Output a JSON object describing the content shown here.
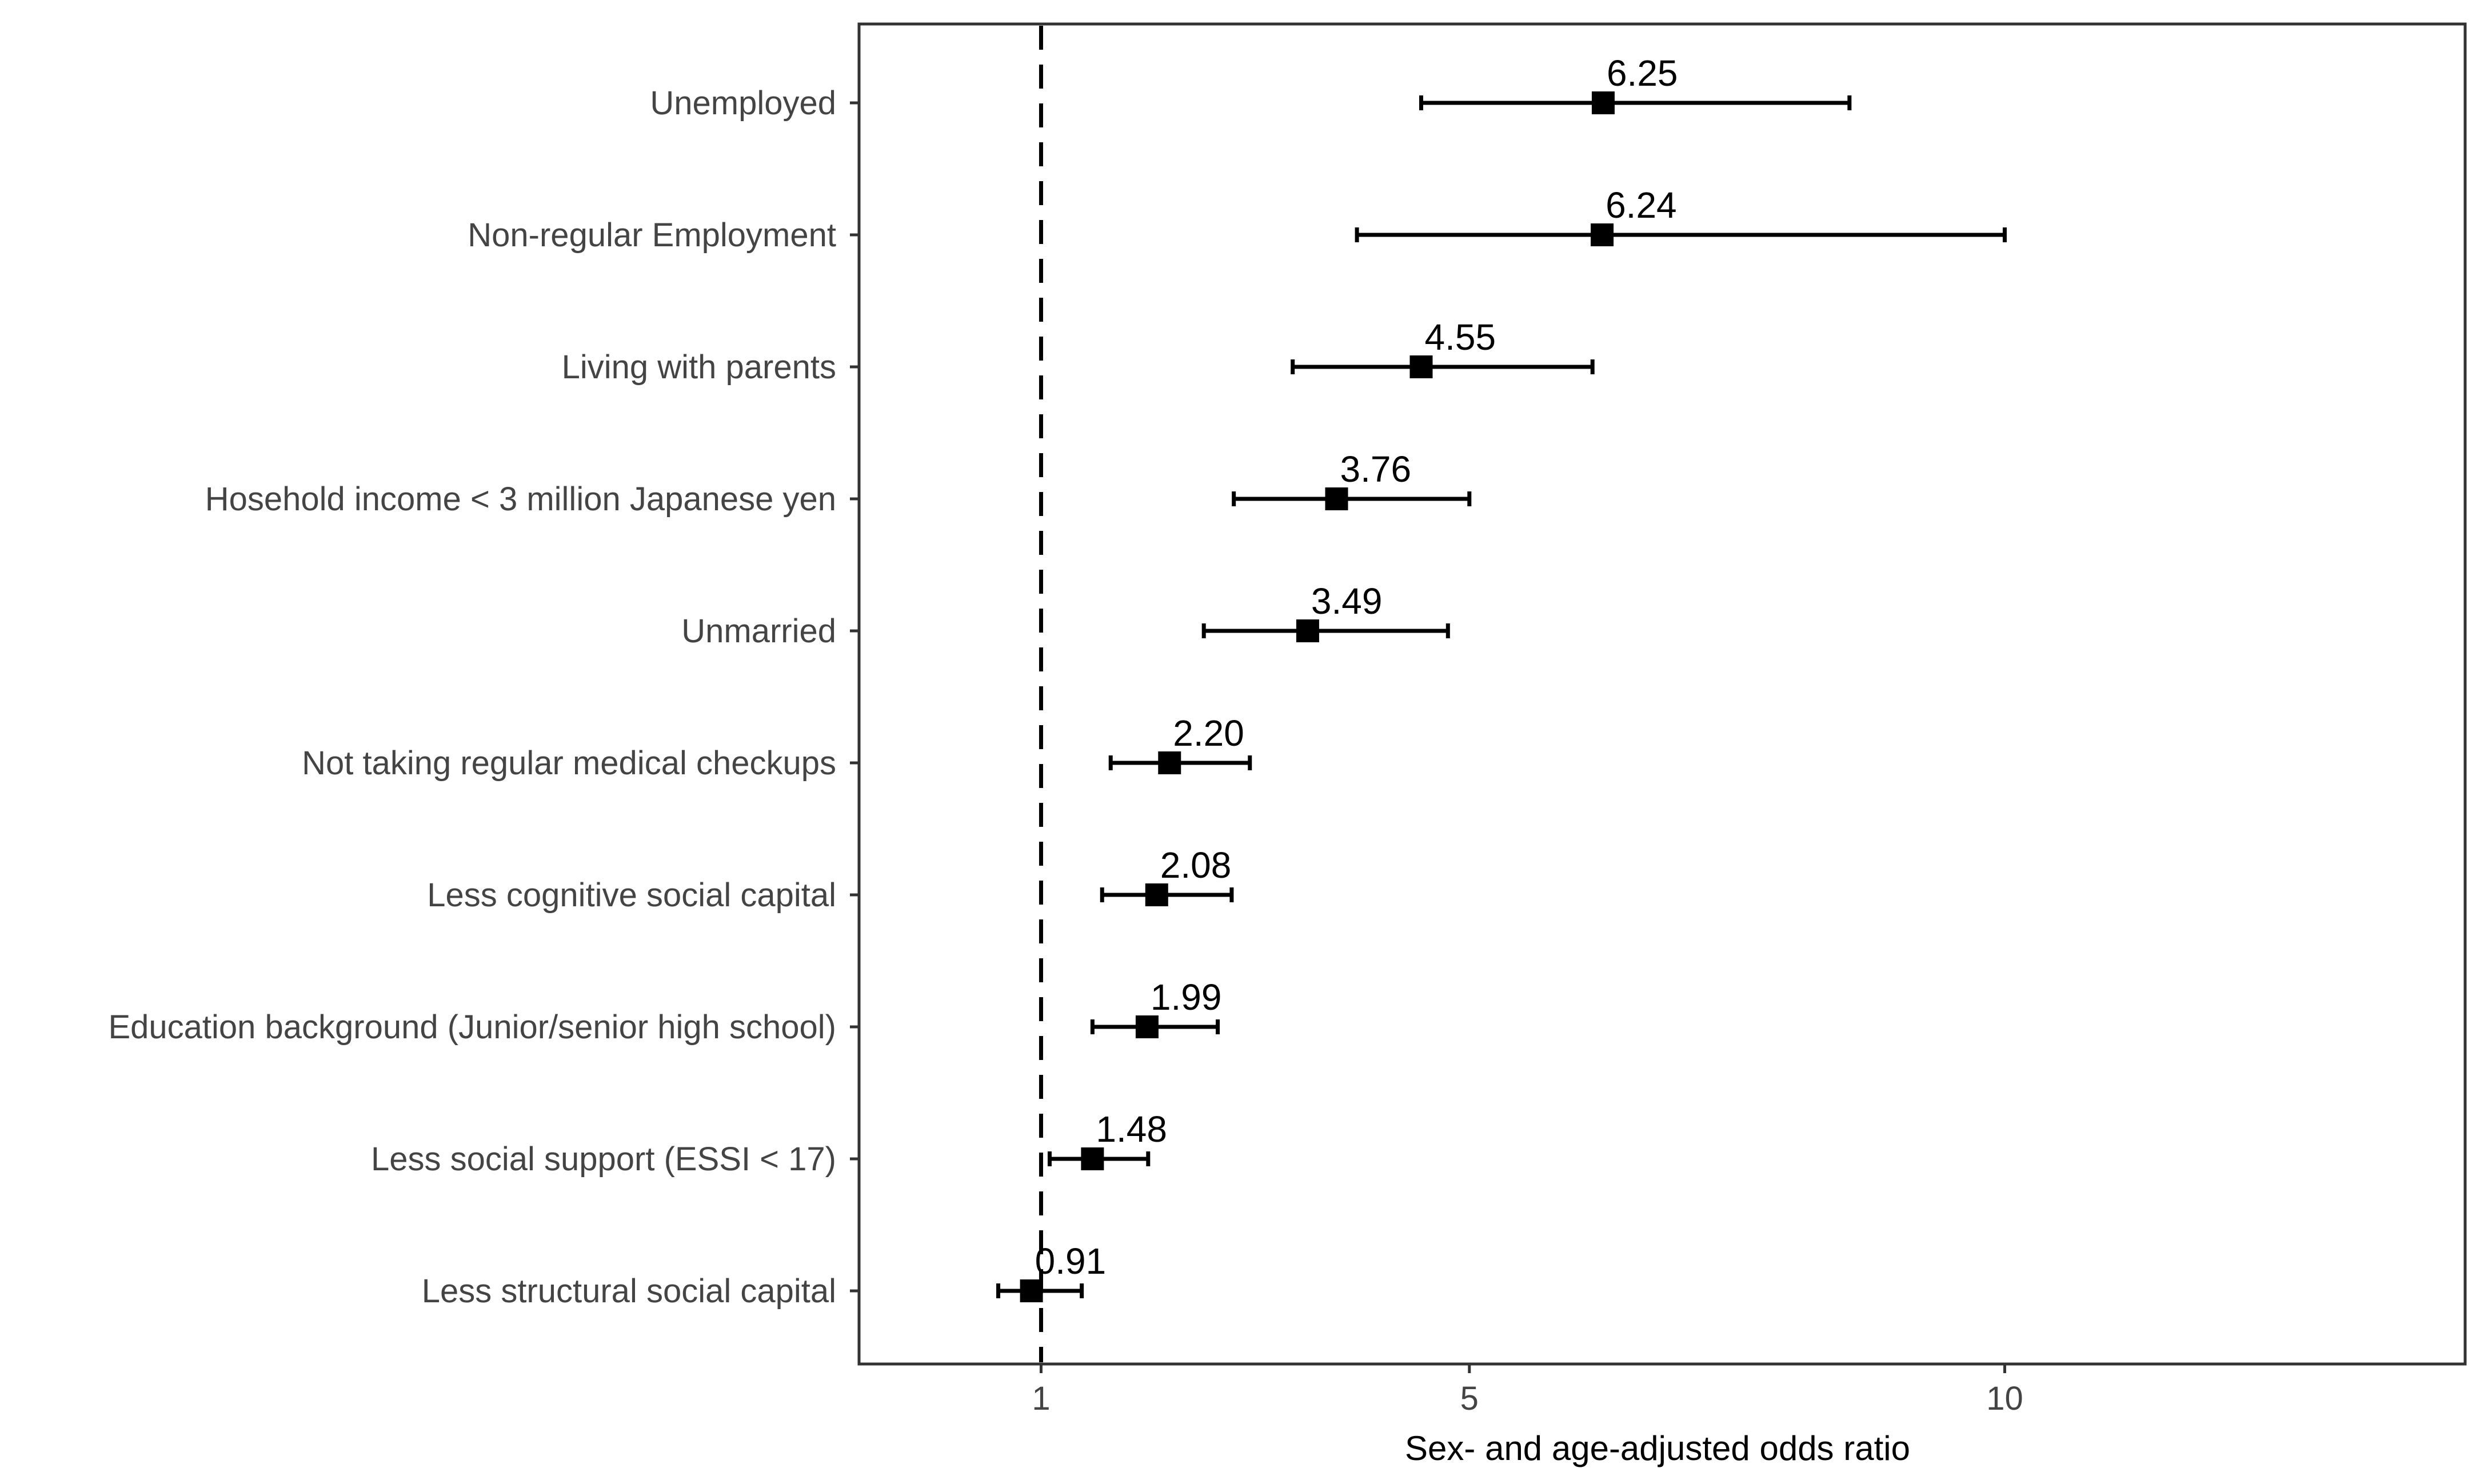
{
  "chart_data": {
    "type": "forest",
    "title": "",
    "xlabel": "Sex- and age-adjusted odds ratio",
    "ylabel": "",
    "xlim": [
      -0.7,
      14.3
    ],
    "xticks": [
      1,
      5,
      10
    ],
    "xtick_labels": [
      "1",
      "5",
      "10"
    ],
    "reference_line": 1,
    "grid": false,
    "categories": [
      "Unemployed",
      "Non-regular Employment",
      "Living with parents",
      "Hosehold income < 3 million Japanese yen",
      "Unmarried",
      "Not taking regular medical checkups",
      "Less cognitive social capital",
      "Education background (Junior/senior high school)",
      "Less social support (ESSI < 17)",
      "Less structural social capital"
    ],
    "estimates": [
      6.25,
      6.24,
      4.55,
      3.76,
      3.49,
      2.2,
      2.08,
      1.99,
      1.48,
      0.91
    ],
    "value_labels": [
      "6.25",
      "6.24",
      "4.55",
      "3.76",
      "3.49",
      "2.20",
      "2.08",
      "1.99",
      "1.48",
      "0.91"
    ],
    "ci_lower": [
      4.55,
      3.95,
      3.35,
      2.8,
      2.52,
      1.65,
      1.57,
      1.48,
      1.08,
      0.6
    ],
    "ci_upper": [
      8.55,
      10.0,
      6.15,
      5.0,
      4.8,
      2.95,
      2.78,
      2.65,
      2.0,
      1.38
    ]
  }
}
